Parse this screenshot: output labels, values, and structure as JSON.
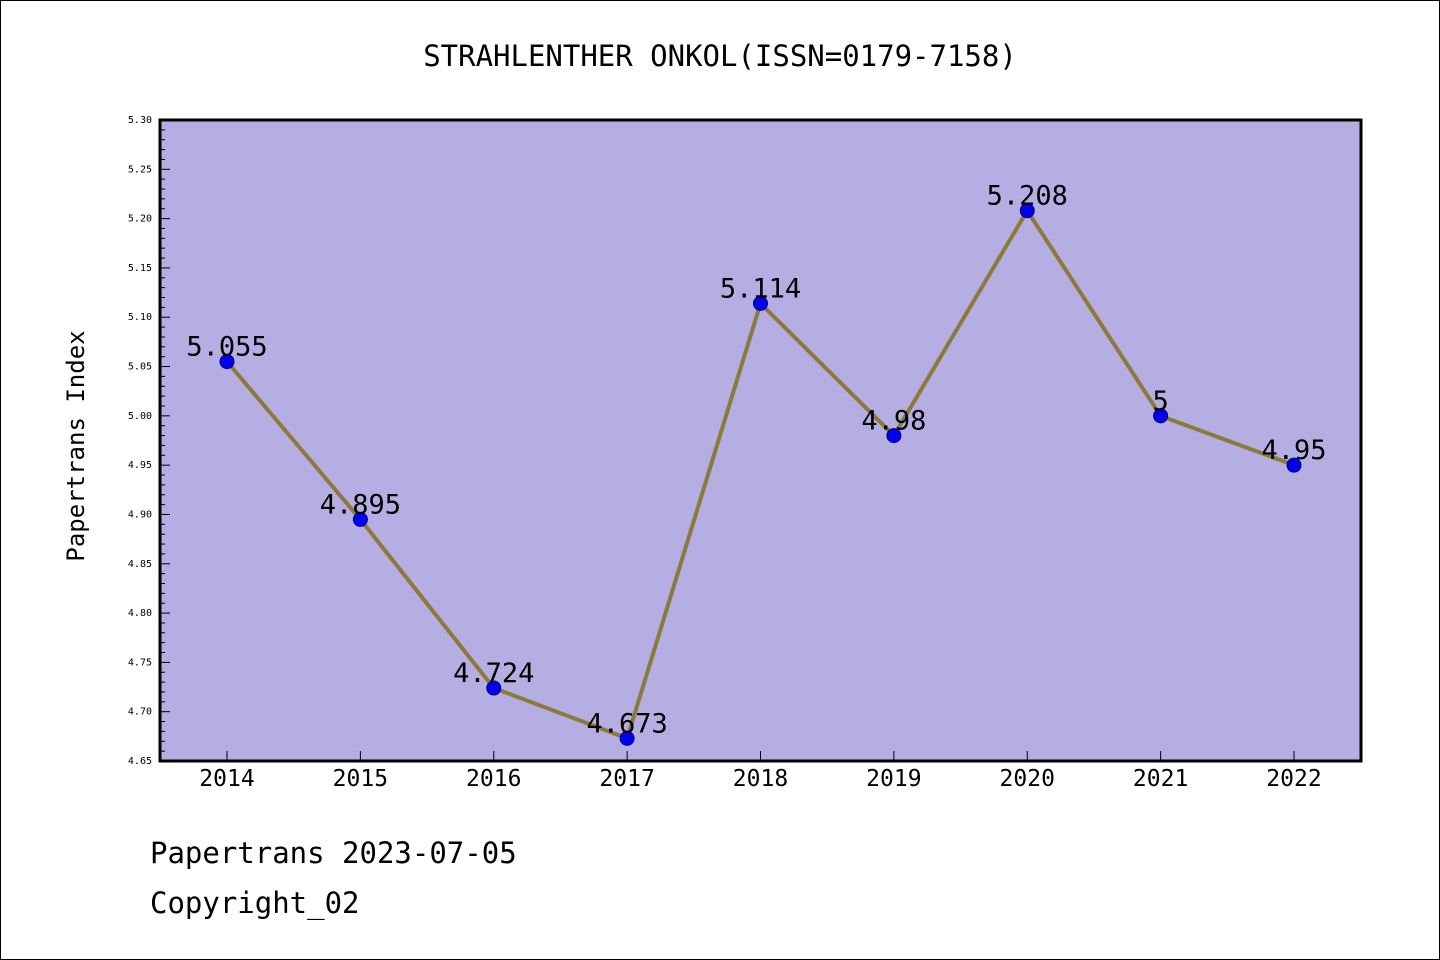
{
  "colors": {
    "plot_background": "#b5aee2",
    "line": "#8c7a3a",
    "marker": "#0000ee",
    "marker_edge": "#00007a"
  },
  "footer": {
    "source": "Papertrans 2023-07-05",
    "copyright": "Copyright_02"
  },
  "chart_data": {
    "type": "line",
    "title": "STRAHLENTHER ONKOL(ISSN=0179-7158)",
    "xlabel": "",
    "ylabel": "Papertrans Index",
    "categories": [
      "2014",
      "2015",
      "2016",
      "2017",
      "2018",
      "2019",
      "2020",
      "2021",
      "2022"
    ],
    "series": [
      {
        "values": [
          5.055,
          4.895,
          4.724,
          4.673,
          5.114,
          4.98,
          5.208,
          5,
          4.95
        ],
        "labels": [
          "5.055",
          "4.895",
          "4.724",
          "4.673",
          "5.114",
          "4.98",
          "5.208",
          "5",
          "4.95"
        ]
      }
    ],
    "ylim": [
      4.65,
      5.3
    ],
    "yticks": [
      "4.65",
      "4.70",
      "4.75",
      "4.80",
      "4.85",
      "4.90",
      "4.95",
      "5.00",
      "5.05",
      "5.10",
      "5.15",
      "5.20",
      "5.25",
      "5.30"
    ],
    "grid": false,
    "legend": "none"
  }
}
